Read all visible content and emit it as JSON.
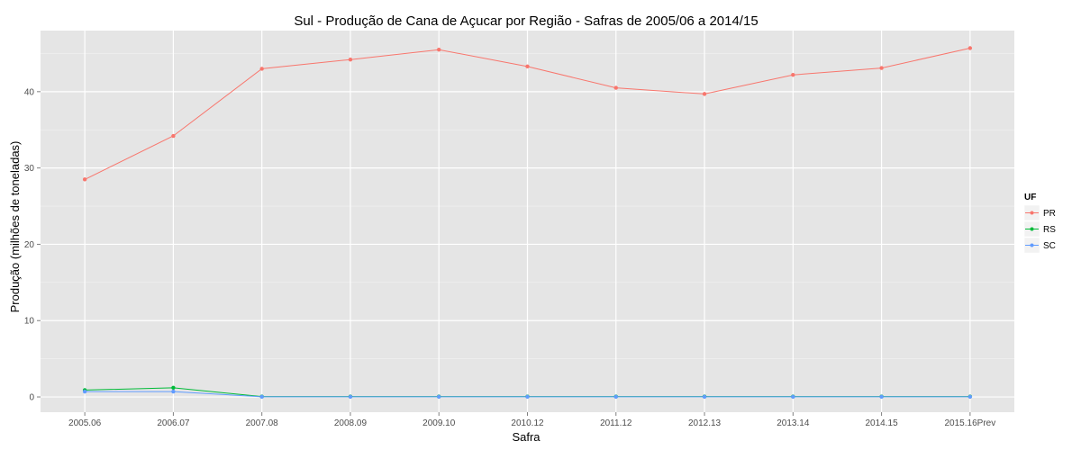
{
  "chart_data": {
    "type": "line",
    "title": "Sul  - Produção de Cana de Açucar por Região - Safras de 2005/06 a 2014/15",
    "xlabel": "Safra",
    "ylabel": "Produção (milhões de toneladas)",
    "categories": [
      "2005.06",
      "2006.07",
      "2007.08",
      "2008.09",
      "2009.10",
      "2010.12",
      "2011.12",
      "2012.13",
      "2013.14",
      "2014.15",
      "2015.16Prev"
    ],
    "ylim": [
      -2,
      48
    ],
    "yticks": [
      0,
      10,
      20,
      30,
      40
    ],
    "grid": true,
    "legend": {
      "title": "UF",
      "position": "right"
    },
    "series": [
      {
        "name": "PR",
        "color": "#F8766D",
        "values": [
          28.5,
          34.2,
          43.0,
          44.2,
          45.5,
          43.3,
          40.5,
          39.7,
          42.2,
          43.1,
          45.7
        ]
      },
      {
        "name": "RS",
        "color": "#00BA38",
        "values": [
          0.9,
          1.2,
          0.05,
          0.05,
          0.05,
          0.05,
          0.05,
          0.05,
          0.05,
          0.05,
          0.05
        ]
      },
      {
        "name": "SC",
        "color": "#619CFF",
        "values": [
          0.7,
          0.7,
          0.02,
          0.02,
          0.02,
          0.02,
          0.02,
          0.02,
          0.02,
          0.02,
          0.02
        ]
      }
    ]
  }
}
